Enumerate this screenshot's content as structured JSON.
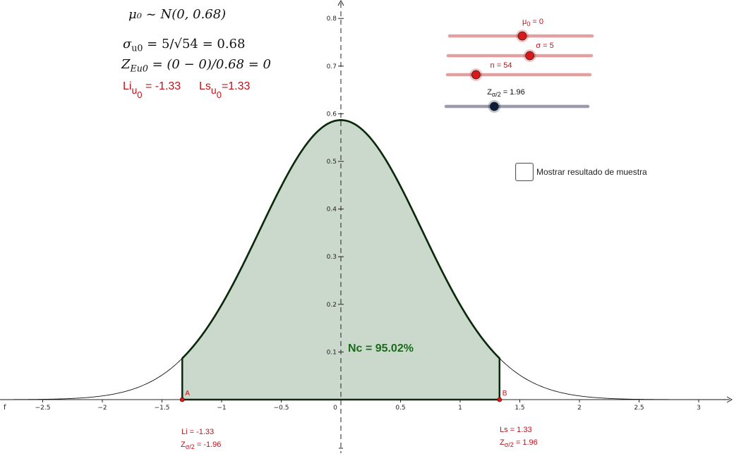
{
  "header": {
    "mu_formula": "μ₀ ~ N(0, 0.68)",
    "sigma_formula": "σ",
    "sigma_sub": "u0",
    "sigma_rest": "= 5/√54 = 0.68",
    "z_formula": "Z",
    "z_sub": "Eu0",
    "z_rest": "= (0 − 0)/0.68 = 0",
    "li_label": "Li",
    "li_sub": "u",
    "li_subsub": "0",
    "li_value": "= -1.33",
    "ls_label": "Ls",
    "ls_sub": "u",
    "ls_subsub": "0",
    "ls_value": "=1.33"
  },
  "sliders": [
    {
      "label": "μ0 = 0",
      "name": "mu0-slider",
      "fraction": 0.51,
      "color": "#e3a0a0",
      "knob": "#d7191c"
    },
    {
      "label": "σ = 5",
      "name": "sigma-slider",
      "fraction": 0.57,
      "color": "#e3a0a0",
      "knob": "#d7191c"
    },
    {
      "label": "n = 54",
      "name": "n-slider",
      "fraction": 0.2,
      "color": "#e3a0a0",
      "knob": "#d7191c"
    },
    {
      "label": "Zα/2 = 1.96",
      "name": "z-alpha-slider",
      "fraction": 0.34,
      "color": "#9b9bab",
      "knob": "#0d1a3a"
    }
  ],
  "slider_labels": {
    "mu": "μ",
    "mu_sub": "0",
    "mu_rest": " = 0",
    "sigma": "σ = 5",
    "n": "n = 54",
    "z": "Z",
    "z_sub": "α/2",
    "z_rest": " = 1.96"
  },
  "checkbox": {
    "label": "Mostrar resultado de muestra",
    "checked": false
  },
  "annotations": {
    "nc": "Nc = 95.02%",
    "point_a": "A",
    "point_b": "B",
    "li_bottom": "Li = -1.33",
    "li_z": "Z",
    "li_z_sub": "σ/2",
    "li_z_rest": " = -1.96",
    "ls_bottom": "Ls =  1.33",
    "ls_z": "Z",
    "ls_z_sub": "σ/2",
    "ls_z_rest": " = 1.96",
    "function_label": "f"
  },
  "colors": {
    "fill": "#cbd8cc",
    "curve": "#0b2a0b",
    "label_red": "#c0101a",
    "nc_green": "#1a6b1a"
  },
  "chart_data": {
    "type": "area",
    "distribution": "normal",
    "mean": 0,
    "sd": 0.68,
    "shaded_interval": [
      -1.33,
      1.33
    ],
    "xlim": [
      -2.85,
      3.25
    ],
    "ylim": [
      -0.11,
      0.82
    ],
    "x_ticks": [
      -2.5,
      -2,
      -1.5,
      -1,
      -0.5,
      0,
      0.5,
      1,
      1.5,
      2,
      2.5,
      3
    ],
    "x_tick_labels": [
      "−2.5",
      "−2",
      "−1.5",
      "−1",
      "−0.5",
      "0",
      "0.5",
      "1",
      "1.5",
      "2",
      "2.5",
      "3"
    ],
    "y_ticks": [
      0.1,
      0.2,
      0.3,
      0.4,
      0.5,
      0.6,
      0.7,
      0.8
    ],
    "y_tick_labels": [
      "0.1",
      "0.2",
      "0.3",
      "0.4",
      "0.5",
      "0.6",
      "0.7",
      "0.8"
    ],
    "shaded_area_percent": 95.02,
    "points": [
      {
        "name": "A",
        "x": -1.33,
        "y": 0
      },
      {
        "name": "B",
        "x": 1.33,
        "y": 0
      }
    ]
  }
}
